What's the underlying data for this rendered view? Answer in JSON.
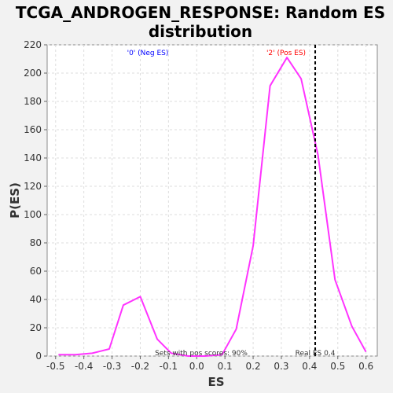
{
  "chart_data": {
    "type": "line",
    "title_line1": "TCGA_ANDROGEN_RESPONSE: Random ES",
    "title_line2": "distribution",
    "xlabel": "ES",
    "ylabel": "P(ES)",
    "xlim": [
      -0.53,
      0.64
    ],
    "ylim": [
      0,
      220
    ],
    "xticks": [
      "-0.5",
      "-0.4",
      "-0.3",
      "-0.2",
      "-0.1",
      "0.0",
      "0.1",
      "0.2",
      "0.3",
      "0.4",
      "0.5",
      "0.6"
    ],
    "xtick_values": [
      -0.5,
      -0.4,
      -0.3,
      -0.2,
      -0.1,
      0.0,
      0.1,
      0.2,
      0.3,
      0.4,
      0.5,
      0.6
    ],
    "yticks": [
      "0",
      "20",
      "40",
      "60",
      "80",
      "100",
      "120",
      "140",
      "160",
      "180",
      "200",
      "220"
    ],
    "ytick_values": [
      0,
      20,
      40,
      60,
      80,
      100,
      120,
      140,
      160,
      180,
      200,
      220
    ],
    "grid": true,
    "series": [
      {
        "color": "#ff33ff",
        "x": [
          -0.49,
          -0.43,
          -0.37,
          -0.31,
          -0.26,
          -0.2,
          -0.14,
          -0.09,
          -0.03,
          0.03,
          0.09,
          0.14,
          0.2,
          0.26,
          0.32,
          0.37,
          0.43,
          0.49,
          0.55,
          0.6
        ],
        "y": [
          1,
          1,
          2,
          5,
          36,
          42,
          12,
          2,
          0,
          0,
          1,
          19,
          78,
          191,
          211,
          196,
          142,
          54,
          21,
          3
        ]
      }
    ],
    "real_es": {
      "x": 0.42,
      "label": "Real ES 0.4"
    },
    "annotations": {
      "neg": {
        "text": "'0' (Neg ES)",
        "color": "#0000ff"
      },
      "pos": {
        "text": "'2' (Pos ES)",
        "color": "#ff0000"
      },
      "footer": "Sets with pos scores: 90%"
    }
  }
}
